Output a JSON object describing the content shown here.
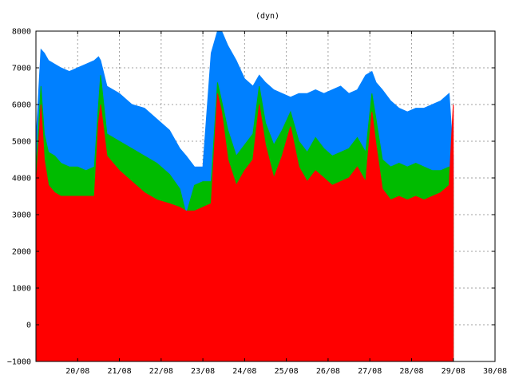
{
  "chart_data": {
    "type": "area",
    "title": "(dyn)",
    "xlabel": "",
    "ylabel": "",
    "ylim": [
      -1000,
      8000
    ],
    "xlim": [
      0,
      11.0
    ],
    "yticks": [
      "8000",
      "7000",
      "6000",
      "5000",
      "4000",
      "3000",
      "2000",
      "1000",
      "0",
      "−1000"
    ],
    "ytick_values": [
      8000,
      7000,
      6000,
      5000,
      4000,
      3000,
      2000,
      1000,
      0,
      -1000
    ],
    "xticks": [
      "20/08",
      "21/08",
      "22/08",
      "23/08",
      "24/08",
      "25/08",
      "26/08",
      "27/08",
      "28/08",
      "29/08",
      "30/08"
    ],
    "xtick_values": [
      1,
      2,
      3,
      4,
      5,
      6,
      7,
      8,
      9,
      10,
      11
    ],
    "x_end": 10.0,
    "grid": true,
    "colors": {
      "blue": "#0080ff",
      "green": "#00bb00",
      "red": "#ff0000",
      "grid": "#a0a0a0"
    },
    "x": [
      0,
      0.12,
      0.2,
      0.3,
      0.45,
      0.6,
      0.8,
      1.0,
      1.2,
      1.4,
      1.5,
      1.55,
      1.7,
      2.0,
      2.3,
      2.6,
      2.9,
      3.2,
      3.45,
      3.6,
      3.8,
      4.0,
      4.2,
      4.35,
      4.45,
      4.6,
      4.8,
      5.0,
      5.2,
      5.35,
      5.5,
      5.7,
      5.9,
      6.1,
      6.3,
      6.5,
      6.7,
      6.9,
      7.1,
      7.3,
      7.5,
      7.7,
      7.9,
      8.05,
      8.15,
      8.3,
      8.5,
      8.7,
      8.9,
      9.1,
      9.3,
      9.5,
      9.7,
      9.9,
      10.0
    ],
    "series": [
      {
        "color": "blue",
        "values": [
          5000,
          7500,
          7400,
          7200,
          7100,
          7000,
          6900,
          7000,
          7100,
          7200,
          7300,
          7200,
          6500,
          6300,
          6000,
          5900,
          5600,
          5300,
          4800,
          4600,
          4300,
          4300,
          7400,
          8000,
          8000,
          7600,
          7200,
          6700,
          6500,
          6800,
          6600,
          6400,
          6300,
          6200,
          6300,
          6300,
          6400,
          6300,
          6400,
          6500,
          6300,
          6400,
          6800,
          6900,
          6600,
          6400,
          6100,
          5900,
          5800,
          5900,
          5900,
          6000,
          6100,
          6300,
          4600
        ]
      },
      {
        "color": "green",
        "values": [
          4200,
          6500,
          5200,
          4700,
          4600,
          4400,
          4300,
          4300,
          4200,
          4300,
          6000,
          6800,
          5200,
          5000,
          4800,
          4600,
          4400,
          4100,
          3700,
          3000,
          3800,
          3900,
          3900,
          6600,
          6100,
          5300,
          4600,
          4900,
          5200,
          6500,
          5500,
          4900,
          5300,
          5800,
          5000,
          4700,
          5100,
          4800,
          4600,
          4700,
          4800,
          5100,
          4700,
          6300,
          5600,
          4500,
          4300,
          4400,
          4300,
          4400,
          4300,
          4200,
          4200,
          4300,
          4000
        ]
      },
      {
        "color": "red",
        "values": [
          3700,
          6000,
          4500,
          3800,
          3600,
          3500,
          3500,
          3500,
          3500,
          3500,
          5500,
          6000,
          4600,
          4200,
          3900,
          3600,
          3400,
          3300,
          3200,
          3100,
          3100,
          3200,
          3300,
          6300,
          5800,
          4500,
          3800,
          4200,
          4500,
          6000,
          4900,
          4000,
          4600,
          5400,
          4300,
          3900,
          4200,
          4000,
          3800,
          3900,
          4000,
          4300,
          3900,
          5800,
          4900,
          3700,
          3400,
          3500,
          3400,
          3500,
          3400,
          3500,
          3600,
          3800,
          6000
        ]
      }
    ]
  }
}
